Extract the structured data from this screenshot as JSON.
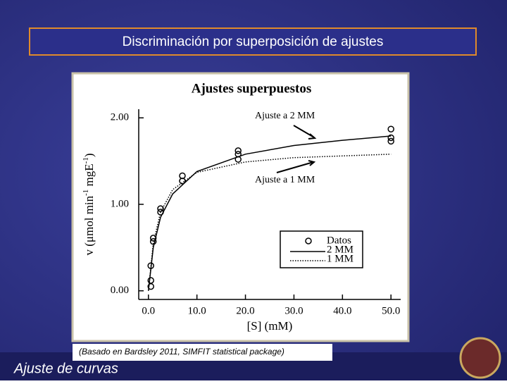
{
  "slide": {
    "title": "Discriminación por superposición de ajustes",
    "caption": "(Basado en Bardsley 2011, SIMFIT statistical package)",
    "footer": "Ajuste de curvas"
  },
  "chart_data": {
    "type": "scatter",
    "title": "Ajustes superpuestos",
    "xlabel": "[S] (mM)",
    "ylabel_parts": [
      "v (μmol min",
      "-1",
      " mgE",
      "-1",
      ")"
    ],
    "xlim": [
      -2,
      52
    ],
    "ylim": [
      -0.1,
      2.1
    ],
    "xticks": [
      {
        "value": 0,
        "label": "0.0"
      },
      {
        "value": 10,
        "label": "10.0"
      },
      {
        "value": 20,
        "label": "20.0"
      },
      {
        "value": 30,
        "label": "30.0"
      },
      {
        "value": 40,
        "label": "40.0"
      },
      {
        "value": 50,
        "label": "50.0"
      }
    ],
    "yticks": [
      {
        "value": 0,
        "label": "0.00"
      },
      {
        "value": 1,
        "label": "1.00"
      },
      {
        "value": 2,
        "label": "2.00"
      }
    ],
    "legend": "lower right",
    "annotations": [
      "Ajuste a 2 MM",
      "Ajuste a 1 MM"
    ],
    "series": [
      {
        "name": "Datos",
        "mode": "markers",
        "color": "#000000",
        "x": [
          0.5,
          0.5,
          0.5,
          1,
          1,
          2.5,
          2.5,
          7,
          7,
          18.5,
          18.5,
          18.5,
          50,
          50,
          50
        ],
        "values": [
          0.05,
          0.12,
          0.29,
          0.61,
          0.57,
          0.95,
          0.91,
          1.33,
          1.27,
          1.62,
          1.58,
          1.52,
          1.87,
          1.77,
          1.73
        ]
      },
      {
        "name": "2 MM",
        "mode": "solid",
        "color": "#000000",
        "x": [
          0,
          1,
          2.5,
          5,
          10,
          20,
          30,
          40,
          50
        ],
        "values": [
          0,
          0.5,
          0.85,
          1.12,
          1.38,
          1.58,
          1.68,
          1.74,
          1.79
        ]
      },
      {
        "name": "1 MM",
        "mode": "dotted",
        "color": "#000000",
        "x": [
          0,
          1,
          2.5,
          5,
          10,
          20,
          30,
          40,
          50
        ],
        "values": [
          0,
          0.55,
          0.91,
          1.17,
          1.37,
          1.49,
          1.54,
          1.56,
          1.58
        ]
      }
    ]
  }
}
